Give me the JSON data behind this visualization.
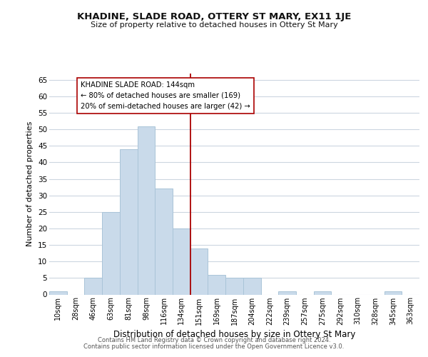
{
  "title": "KHADINE, SLADE ROAD, OTTERY ST MARY, EX11 1JE",
  "subtitle": "Size of property relative to detached houses in Ottery St Mary",
  "xlabel": "Distribution of detached houses by size in Ottery St Mary",
  "ylabel": "Number of detached properties",
  "bin_labels": [
    "10sqm",
    "28sqm",
    "46sqm",
    "63sqm",
    "81sqm",
    "98sqm",
    "116sqm",
    "134sqm",
    "151sqm",
    "169sqm",
    "187sqm",
    "204sqm",
    "222sqm",
    "239sqm",
    "257sqm",
    "275sqm",
    "292sqm",
    "310sqm",
    "328sqm",
    "345sqm",
    "363sqm"
  ],
  "bar_heights": [
    1,
    0,
    5,
    25,
    44,
    51,
    32,
    20,
    14,
    6,
    5,
    5,
    0,
    1,
    0,
    1,
    0,
    0,
    0,
    1,
    0
  ],
  "bar_color": "#c9daea",
  "bar_edge_color": "#aac4d8",
  "reference_line_x_label": "151sqm",
  "reference_line_color": "#aa0000",
  "annotation_line1": "KHADINE SLADE ROAD: 144sqm",
  "annotation_line2": "← 80% of detached houses are smaller (169)",
  "annotation_line3": "20% of semi-detached houses are larger (42) →",
  "annotation_box_edge_color": "#aa0000",
  "annotation_box_bg_color": "#ffffff",
  "ylim": [
    0,
    67
  ],
  "yticks": [
    0,
    5,
    10,
    15,
    20,
    25,
    30,
    35,
    40,
    45,
    50,
    55,
    60,
    65
  ],
  "footer_line1": "Contains HM Land Registry data © Crown copyright and database right 2024.",
  "footer_line2": "Contains public sector information licensed under the Open Government Licence v3.0.",
  "background_color": "#ffffff",
  "grid_color": "#ccd6e0"
}
